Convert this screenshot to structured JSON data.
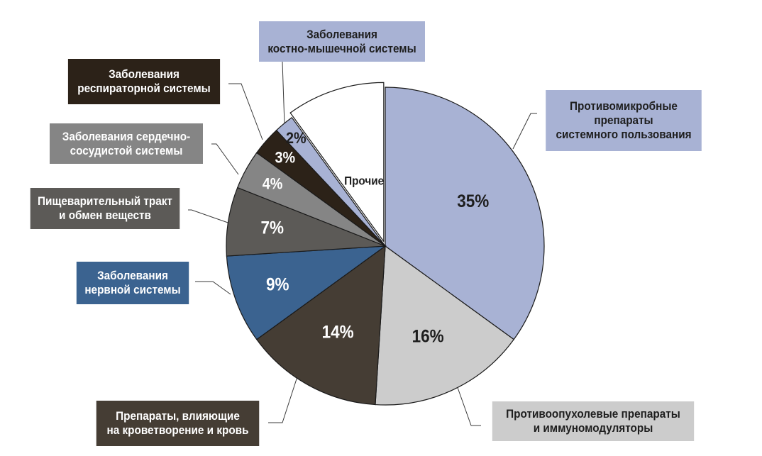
{
  "chart_data": {
    "type": "pie",
    "title": "",
    "slices": [
      {
        "label_lines": [
          "Противомикробные",
          "препараты",
          "системного пользования"
        ],
        "value": 35,
        "value_label": "35%",
        "color": "#a8b2d4",
        "value_text_color": "#1e1e1e",
        "box_text_color": "#1e1e1e"
      },
      {
        "label_lines": [
          "Противоопухолевые препараты",
          "и иммуномодуляторы"
        ],
        "value": 16,
        "value_label": "16%",
        "color": "#cccccc",
        "value_text_color": "#1e1e1e",
        "box_text_color": "#1e1e1e"
      },
      {
        "label_lines": [
          "Препараты,  влияющие",
          "на кроветворение и кровь"
        ],
        "value": 14,
        "value_label": "14%",
        "color": "#453d34",
        "value_text_color": "#ffffff",
        "box_text_color": "#ffffff"
      },
      {
        "label_lines": [
          "Заболевания",
          "нервной системы"
        ],
        "value": 9,
        "value_label": "9%",
        "color": "#3b6390",
        "value_text_color": "#ffffff",
        "box_text_color": "#ffffff"
      },
      {
        "label_lines": [
          "Пищеварительный тракт",
          "и обмен веществ"
        ],
        "value": 7,
        "value_label": "7%",
        "color": "#5c5a57",
        "value_text_color": "#ffffff",
        "box_text_color": "#ffffff"
      },
      {
        "label_lines": [
          "Заболевания сердечно-",
          "сосудистой  системы"
        ],
        "value": 4,
        "value_label": "4%",
        "color": "#858585",
        "value_text_color": "#ffffff",
        "box_text_color": "#ffffff"
      },
      {
        "label_lines": [
          "Заболевания",
          "респираторной  системы"
        ],
        "value": 3,
        "value_label": "3%",
        "color": "#2c2218",
        "value_text_color": "#ffffff",
        "box_text_color": "#ffffff"
      },
      {
        "label_lines": [
          "Заболевания",
          "костно-мышечной системы"
        ],
        "value": 2,
        "value_label": "2%",
        "color": "#a8b2d4",
        "value_text_color": "#1e1e1e",
        "box_text_color": "#1e1e1e"
      },
      {
        "label_lines": [],
        "value": 10,
        "value_label": "Прочие",
        "color": "#ffffff",
        "value_text_color": "#1e1e1e",
        "box_text_color": "#1e1e1e"
      }
    ]
  }
}
